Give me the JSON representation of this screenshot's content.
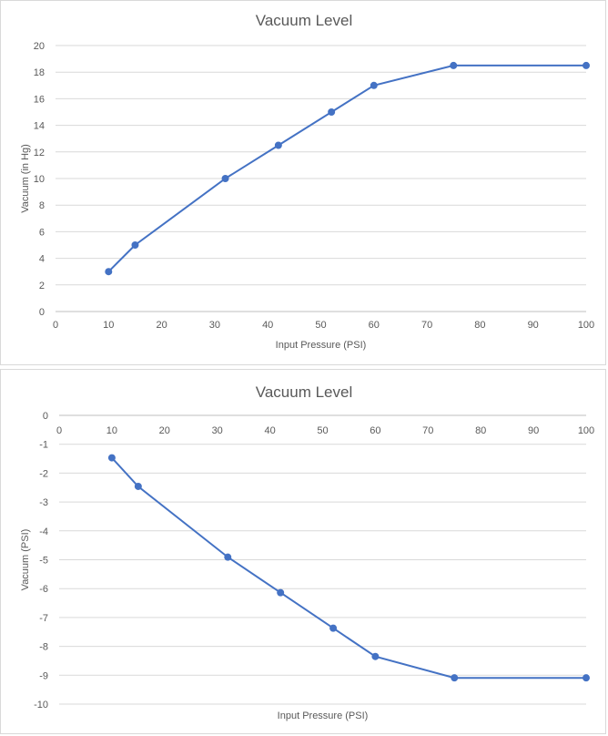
{
  "chart_data": [
    {
      "type": "line",
      "title": "Vacuum Level",
      "xlabel": "Input Pressure (PSI)",
      "ylabel": "Vacuum (in Hg)",
      "xlim": [
        0,
        100
      ],
      "ylim": [
        0,
        20
      ],
      "x_ticks": [
        0,
        10,
        20,
        30,
        40,
        50,
        60,
        70,
        80,
        90,
        100
      ],
      "y_ticks": [
        0,
        2,
        4,
        6,
        8,
        10,
        12,
        14,
        16,
        18,
        20
      ],
      "grid": "horizontal",
      "series": [
        {
          "x": [
            10,
            15,
            32,
            42,
            52,
            60,
            75,
            100
          ],
          "y": [
            3,
            5,
            10,
            12.5,
            15,
            17,
            18.5,
            18.5
          ]
        }
      ],
      "color": "#4472c4"
    },
    {
      "type": "line",
      "title": "Vacuum Level",
      "xlabel": "Input Pressure (PSI)",
      "ylabel": "Vacuum (PSI)",
      "xlim": [
        0,
        100
      ],
      "ylim": [
        -10,
        0
      ],
      "x_ticks": [
        0,
        10,
        20,
        30,
        40,
        50,
        60,
        70,
        80,
        90,
        100
      ],
      "y_ticks": [
        0,
        -1,
        -2,
        -3,
        -4,
        -5,
        -6,
        -7,
        -8,
        -9,
        -10
      ],
      "grid": "horizontal",
      "series": [
        {
          "x": [
            10,
            15,
            32,
            42,
            52,
            60,
            75,
            100
          ],
          "y": [
            -1.47,
            -2.46,
            -4.91,
            -6.14,
            -7.37,
            -8.35,
            -9.09,
            -9.09
          ]
        }
      ],
      "color": "#4472c4"
    }
  ]
}
